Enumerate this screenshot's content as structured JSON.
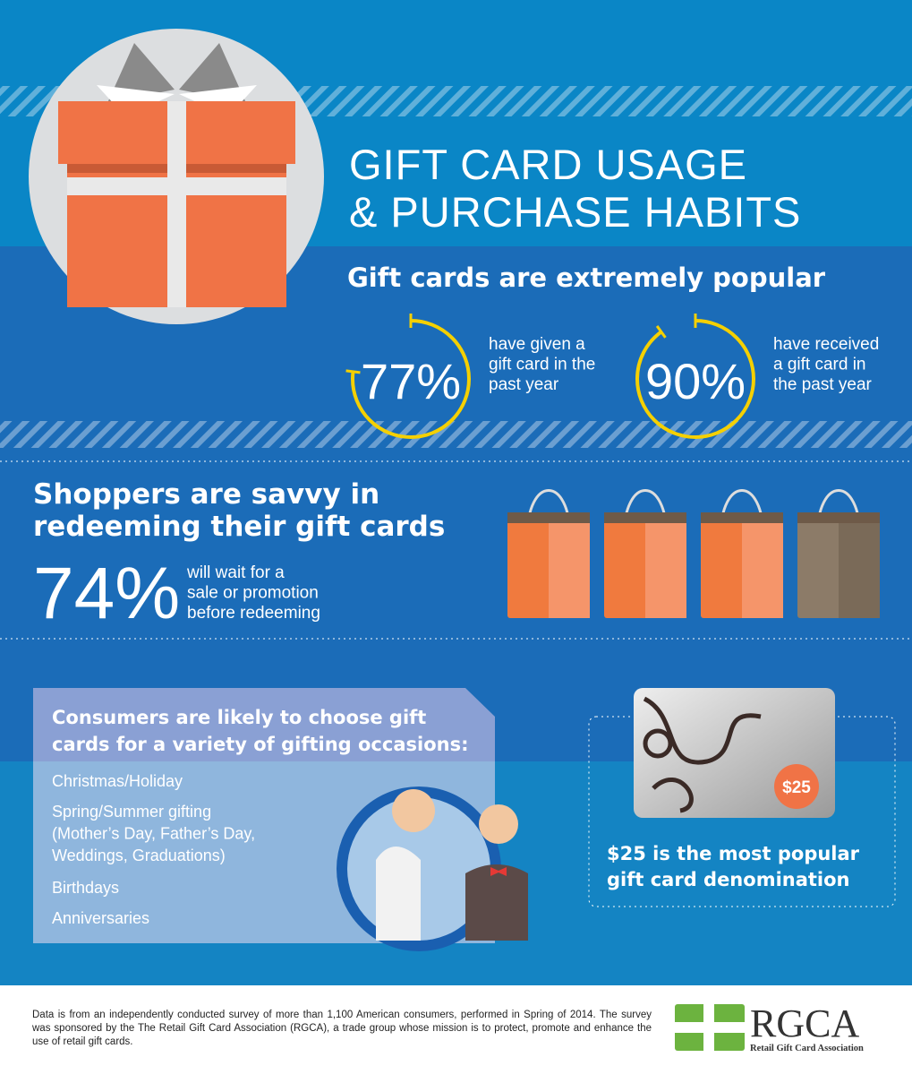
{
  "header": {
    "title": [
      "GIFT CARD USAGE",
      "& PURCHASE HABITS"
    ]
  },
  "popular": {
    "heading": "Gift cards are extremely popular",
    "stats": [
      {
        "value": 77,
        "label": "77%",
        "text": [
          "have given a",
          "gift card in the",
          "past year"
        ]
      },
      {
        "value": 90,
        "label": "90%",
        "text": [
          "have received",
          "a gift card in",
          "the past year"
        ]
      }
    ]
  },
  "savvy": {
    "heading": [
      "Shoppers are savvy in",
      "redeeming their gift cards"
    ],
    "stat": "74%",
    "text": [
      "will wait for a",
      "sale or promotion",
      "before redeeming"
    ]
  },
  "occasions": {
    "heading": [
      "Consumers are likely to choose gift",
      "cards for a variety of gifting occasions:"
    ],
    "items": [
      [
        "Christmas/Holiday"
      ],
      [
        "Spring/Summer gifting",
        "(Mother’s Day, Father’s Day,",
        "Weddings, Graduations)"
      ],
      [
        "Birthdays"
      ],
      [
        "Anniversaries"
      ]
    ]
  },
  "denomination": {
    "badge": "$25",
    "text": [
      "$25 is the most popular",
      "gift card denomination"
    ]
  },
  "footer": {
    "note": "Data is from an independently conducted survey of more than 1,100 American consumers, performed in Spring of 2014. The survey was sponsored by the The Retail Gift Card Association (RGCA), a trade group whose mission is to protect, promote and enhance the use of retail gift cards.",
    "logo": "RGCA",
    "logo_subtitle": "Retail Gift Card Association"
  }
}
